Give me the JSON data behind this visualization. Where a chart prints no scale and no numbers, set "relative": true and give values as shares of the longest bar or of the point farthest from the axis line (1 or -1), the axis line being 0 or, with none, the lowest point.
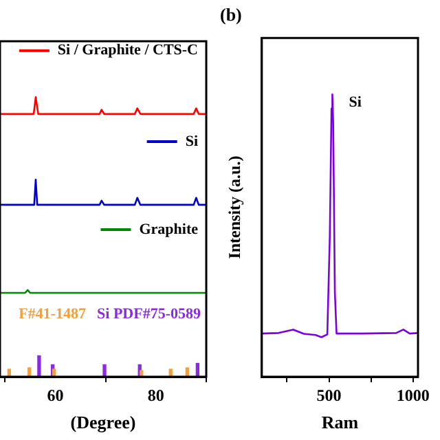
{
  "chart_data": [
    {
      "type": "line",
      "relative": true,
      "legend": "right",
      "xlabel": "(Degree)",
      "xlim": [
        49,
        90
      ],
      "xticks": [
        60,
        80
      ],
      "tick_labels": "x",
      "series": [
        {
          "name": "Si / Graphite / CTS-C",
          "color": "#ff0000",
          "x": [
            49,
            55.7,
            56.1,
            56.6,
            68.8,
            69.2,
            69.7,
            75.8,
            76.3,
            76.9,
            87.5,
            88,
            88.5,
            90
          ],
          "values": [
            0.94,
            0.94,
            1.0,
            0.94,
            0.94,
            0.955,
            0.94,
            0.94,
            0.96,
            0.94,
            0.94,
            0.96,
            0.94,
            0.94
          ]
        },
        {
          "name": "Si",
          "color": "#0000cc",
          "x": [
            49,
            55.8,
            56.1,
            56.4,
            68.8,
            69.2,
            69.7,
            75.8,
            76.3,
            76.9,
            87.5,
            88,
            88.5,
            90
          ],
          "values": [
            0.615,
            0.615,
            0.705,
            0.615,
            0.615,
            0.63,
            0.615,
            0.615,
            0.64,
            0.615,
            0.615,
            0.64,
            0.615,
            0.615
          ]
        },
        {
          "name": "Graphite",
          "color": "#008800",
          "x": [
            49,
            54,
            54.5,
            55,
            90
          ],
          "values": [
            0.3,
            0.3,
            0.31,
            0.3,
            0.3
          ]
        },
        {
          "name": "F#41-1487",
          "type": "bar",
          "color": "#f0a040",
          "x": [
            51.1,
            55.1,
            60,
            77.4,
            83.2,
            86.5
          ],
          "values": [
            0.027,
            0.032,
            0.027,
            0.022,
            0.027,
            0.032
          ]
        },
        {
          "name": "Si PDF#75-0589",
          "type": "bar",
          "color": "#8a2be2",
          "x": [
            56.5,
            59.2,
            69.5,
            76.5,
            88
          ],
          "values": [
            0.075,
            0.043,
            0.043,
            0.043,
            0.048
          ]
        }
      ]
    },
    {
      "type": "line",
      "relative": true,
      "title": "(b)",
      "ylabel": "Intensity (a.u.)",
      "xlabel": "Ram",
      "xlim": [
        100,
        1030
      ],
      "xticks": [
        {
          "value": 250,
          "label": null
        },
        500,
        {
          "value": 750,
          "label": null
        },
        1000
      ],
      "tick_labels": "x",
      "annotations": [
        {
          "text": "Si",
          "x": 520,
          "y": 1
        }
      ],
      "series": [
        {
          "color": "#7b00e0",
          "x": [
            100,
            200,
            287,
            350,
            420,
            455,
            490,
            505,
            515,
            520,
            525,
            535,
            545,
            700,
            900,
            943,
            980,
            1030
          ],
          "values": [
            0.153,
            0.155,
            0.167,
            0.152,
            0.148,
            0.14,
            0.15,
            0.5,
            0.95,
            1.0,
            0.9,
            0.3,
            0.153,
            0.153,
            0.155,
            0.167,
            0.153,
            0.155
          ]
        }
      ]
    }
  ]
}
